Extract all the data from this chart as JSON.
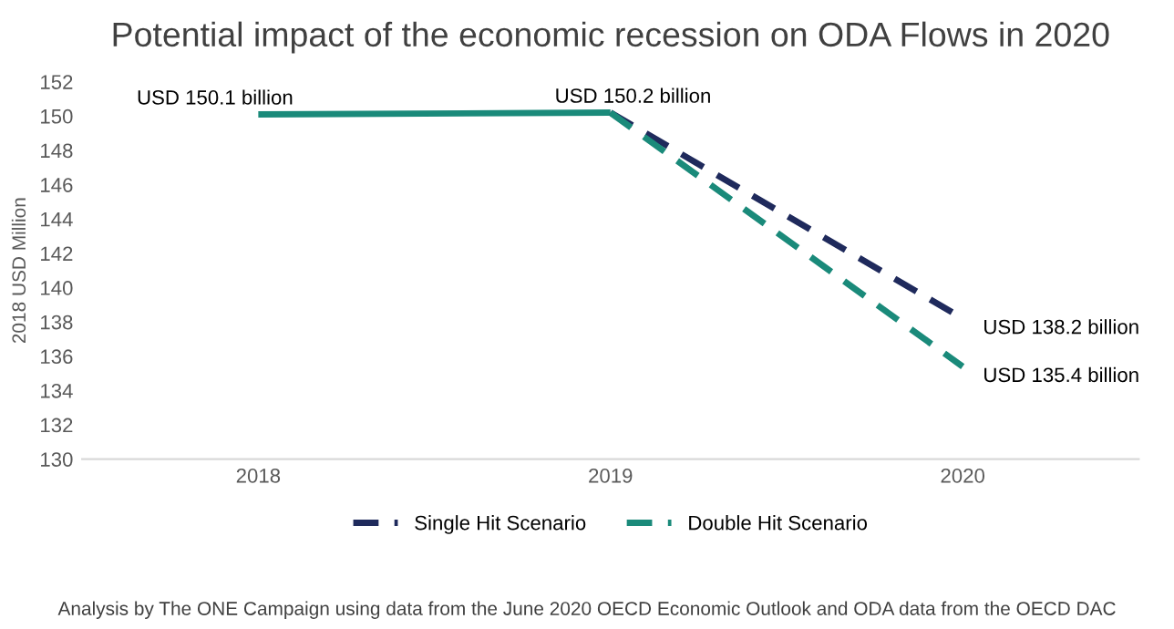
{
  "chart_data": {
    "type": "line",
    "title": "Potential impact of the economic recession on ODA Flows in 2020",
    "ylabel": "2018 USD Million",
    "categories": [
      "2018",
      "2019",
      "2020"
    ],
    "series": [
      {
        "color": "#1a8a7a",
        "values": [
          150.1,
          150.2,
          null
        ],
        "line_style": "solid"
      },
      {
        "name": "Single Hit Scenario",
        "color": "#1f2a5c",
        "values": [
          null,
          150.2,
          138.2
        ],
        "line_style": "dashed"
      },
      {
        "name": "Double Hit Scenario",
        "color": "#1a8a7a",
        "values": [
          null,
          150.2,
          135.4
        ],
        "line_style": "dashed"
      }
    ],
    "ylim": [
      130,
      152
    ],
    "yticks": [
      130,
      132,
      134,
      136,
      138,
      140,
      142,
      144,
      146,
      148,
      150,
      152
    ],
    "grid": false,
    "legend": "bottom",
    "marker": "none",
    "annotations": [
      {
        "text": "USD 150.1 billion",
        "x": "2018",
        "y": 150.1
      },
      {
        "text": "USD 150.2 billion",
        "x": "2019",
        "y": 150.2
      },
      {
        "text": "USD 138.2 billion",
        "x": "2020",
        "y": 138.2
      },
      {
        "text": "USD 135.4 billion",
        "x": "2020",
        "y": 135.4
      },
      "Analysis by The ONE Campaign using data from the June 2020 OECD Economic Outlook and ODA data from the OECD DAC"
    ]
  }
}
